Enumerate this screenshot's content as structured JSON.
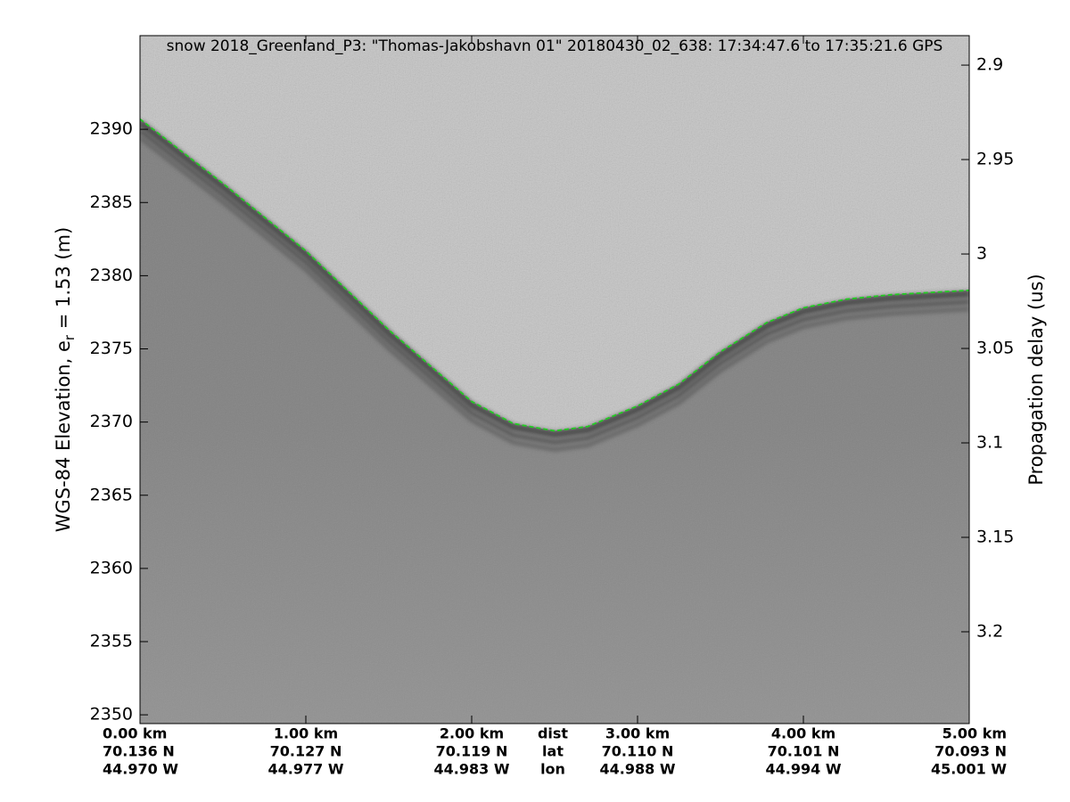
{
  "chart_data": {
    "type": "line",
    "title": "snow 2018_Greenland_P3: \"Thomas-Jakobshavn 01\"  20180430_02_638: 17:34:47.6 to 17:35:21.6 GPS",
    "ylabel": {
      "main": "WGS-84 Elevation, e",
      "sub": "r",
      "rest": " = 1.53 (m)"
    },
    "y2label": "Propagation delay (us)",
    "xlim": [
      0,
      5
    ],
    "xticks": [
      {
        "value": 0,
        "label": "0.00 km"
      },
      {
        "value": 1,
        "label": "1.00 km"
      },
      {
        "value": 2,
        "label": "2.00 km"
      },
      {
        "value": 3,
        "label": "3.00 km"
      },
      {
        "value": 4,
        "label": "4.00 km"
      },
      {
        "value": 5,
        "label": "5.00 km"
      }
    ],
    "lat_labels": [
      "70.136 N",
      "70.127 N",
      "70.119 N",
      "70.110 N",
      "70.101 N",
      "70.093 N"
    ],
    "lon_labels": [
      "44.970 W",
      "44.977 W",
      "44.983 W",
      "44.988 W",
      "44.994 W",
      "45.001 W"
    ],
    "row_labels": [
      "dist",
      "lat",
      "lon"
    ],
    "ylim": [
      2349.4,
      2396.4
    ],
    "yticks": [
      2350,
      2355,
      2360,
      2365,
      2370,
      2375,
      2380,
      2385,
      2390
    ],
    "y2lim": [
      2.8844,
      3.2486
    ],
    "y2_reversed": true,
    "y2ticks": [
      2.9,
      2.95,
      3,
      3.05,
      3.1,
      3.15,
      3.2
    ],
    "x": [
      0,
      0.5,
      1,
      1.5,
      2,
      2.25,
      2.5,
      2.7,
      3,
      3.25,
      3.5,
      3.78,
      4,
      4.26,
      4.53,
      5
    ],
    "values": [
      2390.7,
      2386.3,
      2381.7,
      2376.3,
      2371.4,
      2369.9,
      2369.4,
      2369.7,
      2371.1,
      2372.6,
      2374.8,
      2376.8,
      2377.8,
      2378.4,
      2378.7,
      2379.0
    ],
    "color": "#22cc22"
  }
}
